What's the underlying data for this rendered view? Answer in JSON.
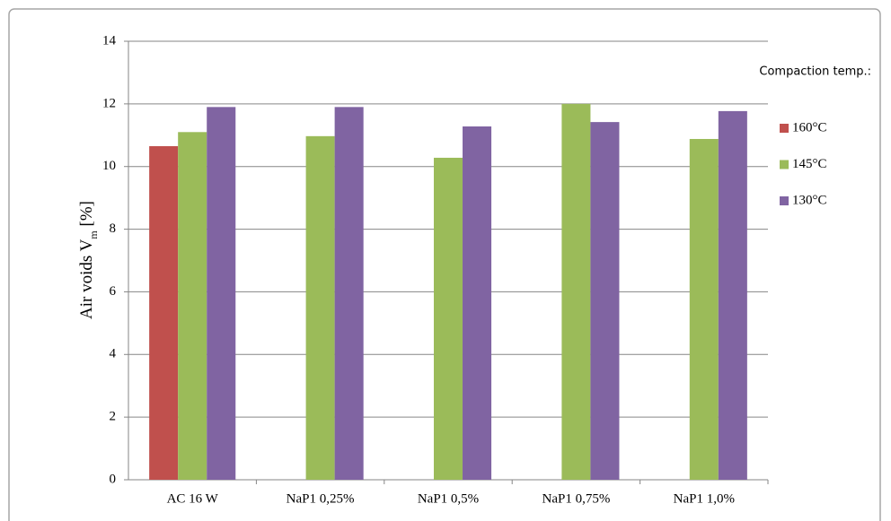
{
  "chart_data": {
    "type": "bar",
    "y_label": [
      "Air voids  V",
      "m",
      " [%]"
    ],
    "legend_title": "Compaction temp.:",
    "legend": "right",
    "grid": true,
    "categories": [
      "AC 16 W",
      "NaP1 0,25%",
      "NaP1 0,5%",
      "NaP1 0,75%",
      "NaP1 1,0%"
    ],
    "series": [
      {
        "name": "160°C",
        "color": "#c0504d",
        "values": [
          10.65,
          null,
          null,
          null,
          null
        ]
      },
      {
        "name": "145°C",
        "color": "#9bbb59",
        "values": [
          11.1,
          10.97,
          10.28,
          12.0,
          10.88
        ]
      },
      {
        "name": "130°C",
        "color": "#8064a2",
        "values": [
          11.9,
          11.9,
          11.28,
          11.42,
          11.77
        ]
      }
    ],
    "ylim": [
      0,
      14
    ],
    "yticks": [
      0,
      2,
      4,
      6,
      8,
      10,
      12,
      14
    ]
  }
}
